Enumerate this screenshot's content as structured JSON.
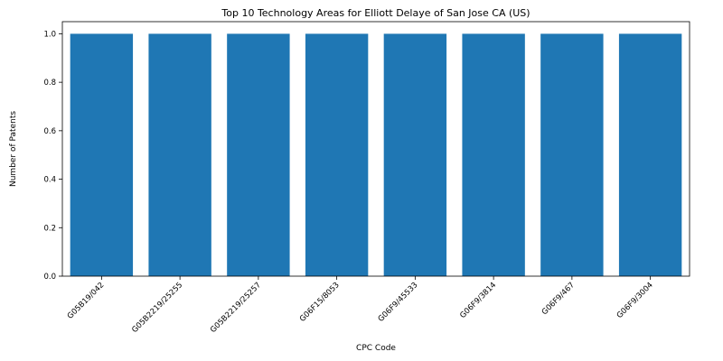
{
  "chart_data": {
    "type": "bar",
    "title": "Top 10 Technology Areas for Elliott Delaye of San Jose CA (US)",
    "xlabel": "CPC Code",
    "ylabel": "Number of Patents",
    "categories": [
      "G05B19/042",
      "G05B2219/25255",
      "G05B2219/25257",
      "G06F15/8053",
      "G06F9/45533",
      "G06F9/3814",
      "G06F9/467",
      "G06F9/3004"
    ],
    "values": [
      1,
      1,
      1,
      1,
      1,
      1,
      1,
      1
    ],
    "ylim": [
      0,
      1.05
    ],
    "yticks": [
      "0.0",
      "0.2",
      "0.4",
      "0.6",
      "0.8",
      "1.0"
    ],
    "grid": false,
    "bar_color": "#1f77b4"
  }
}
